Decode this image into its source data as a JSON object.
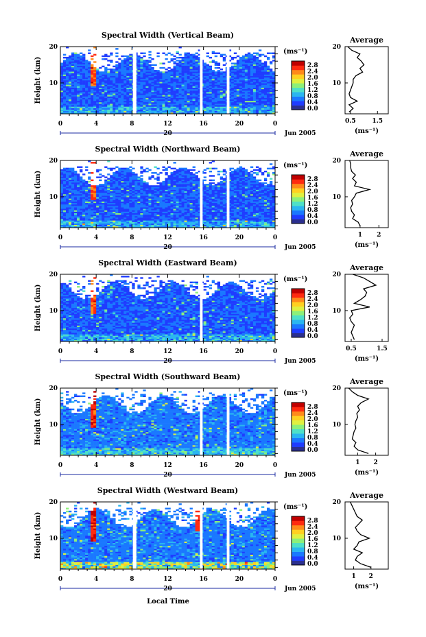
{
  "figure": {
    "xlabel": "Local Time",
    "date_label": "Jun 2005",
    "day_label": "20",
    "colorbar_unit": "(ms⁻¹)",
    "colorbar_ticks": [
      "0.0",
      "0.4",
      "0.8",
      "1.2",
      "1.6",
      "2.0",
      "2.4",
      "2.8"
    ],
    "colorbar_range": [
      0.0,
      2.8
    ],
    "colormap": [
      "#2b2f8f",
      "#1f3cff",
      "#1a78ff",
      "#2ab6f0",
      "#4ee0c8",
      "#8cf07a",
      "#e0f040",
      "#ffd020",
      "#ff8a1a",
      "#ff2a10",
      "#c00000"
    ],
    "gap_color": "#ffffff",
    "avg_title": "Average",
    "avg_xlabel": "(ms⁻¹)"
  },
  "chart_data": [
    {
      "type": "heatmap",
      "title": "Spectral Width (Vertical Beam)",
      "ylabel": "Height (km)",
      "xlim": [
        0,
        24
      ],
      "ylim": [
        1.5,
        20
      ],
      "xticks": [
        "0",
        "4",
        "8",
        "12",
        "16",
        "20",
        "0"
      ],
      "yticks": [
        "10",
        "20"
      ],
      "data_gaps_local_time": [
        [
          8.1,
          8.5
        ],
        [
          15.6,
          15.9
        ],
        [
          18.6,
          18.9
        ]
      ],
      "profile": {
        "title": "Average",
        "xlim": [
          0.3,
          1.9
        ],
        "xticks": [
          "0.5",
          "1.5"
        ],
        "heights": [
          2,
          3,
          4,
          5,
          6,
          7,
          8,
          9,
          10,
          11,
          12,
          13,
          14,
          15,
          16,
          17,
          18,
          19,
          20
        ],
        "values": [
          0.45,
          0.6,
          0.45,
          0.75,
          0.5,
          0.45,
          0.5,
          0.55,
          0.6,
          0.6,
          0.7,
          0.95,
          0.85,
          1.0,
          0.9,
          0.75,
          0.85,
          0.55,
          0.4
        ]
      }
    },
    {
      "type": "heatmap",
      "title": "Spectral Width (Northward Beam)",
      "ylabel": "Height (km)",
      "xlim": [
        0,
        24
      ],
      "ylim": [
        1.5,
        20
      ],
      "xticks": [
        "0",
        "4",
        "8",
        "12",
        "16",
        "20",
        "0"
      ],
      "yticks": [
        "10",
        "20"
      ],
      "data_gaps_local_time": [
        [
          15.6,
          15.9
        ],
        [
          18.6,
          18.9
        ]
      ],
      "profile": {
        "title": "Average",
        "xlim": [
          0.2,
          2.5
        ],
        "xticks": [
          "1",
          "2"
        ],
        "heights": [
          2,
          3,
          4,
          5,
          6,
          7,
          8,
          9,
          10,
          11,
          12,
          13,
          14,
          15,
          16,
          17,
          18,
          19,
          20
        ],
        "values": [
          1.0,
          0.9,
          0.6,
          0.7,
          0.55,
          0.5,
          0.6,
          0.55,
          0.7,
          0.8,
          1.5,
          0.7,
          0.8,
          0.6,
          0.75,
          0.55,
          0.5,
          0.5,
          0.45
        ]
      }
    },
    {
      "type": "heatmap",
      "title": "Spectral Width (Eastward Beam)",
      "ylabel": "Height (km)",
      "xlim": [
        0,
        24
      ],
      "ylim": [
        1.5,
        20
      ],
      "xticks": [
        "0",
        "4",
        "8",
        "12",
        "16",
        "20",
        "0"
      ],
      "yticks": [
        "10",
        "20"
      ],
      "data_gaps_local_time": [
        [
          15.6,
          15.9
        ]
      ],
      "profile": {
        "title": "Average",
        "xlim": [
          0.3,
          1.7
        ],
        "xticks": [
          "0.5",
          "1.5"
        ],
        "heights": [
          2,
          3,
          4,
          5,
          6,
          7,
          8,
          9,
          10,
          11,
          12,
          13,
          14,
          15,
          16,
          17,
          18,
          19,
          20
        ],
        "values": [
          0.6,
          0.55,
          0.5,
          0.55,
          0.6,
          0.5,
          0.45,
          0.55,
          0.5,
          1.1,
          0.6,
          0.8,
          0.95,
          1.0,
          0.9,
          1.3,
          1.1,
          0.9,
          0.55
        ]
      }
    },
    {
      "type": "heatmap",
      "title": "Spectral Width (Southward Beam)",
      "ylabel": "Height (km)",
      "xlim": [
        0,
        24
      ],
      "ylim": [
        1.5,
        20
      ],
      "xticks": [
        "0",
        "4",
        "8",
        "12",
        "16",
        "20",
        "0"
      ],
      "yticks": [
        "10",
        "20"
      ],
      "data_gaps_local_time": [
        [
          15.6,
          15.9
        ],
        [
          18.6,
          18.9
        ]
      ],
      "profile": {
        "title": "Average",
        "xlim": [
          0.3,
          2.7
        ],
        "xticks": [
          "1",
          "2"
        ],
        "heights": [
          2,
          3,
          4,
          5,
          6,
          7,
          8,
          9,
          10,
          11,
          12,
          13,
          14,
          15,
          16,
          17,
          18,
          19,
          20
        ],
        "values": [
          1.6,
          1.0,
          0.8,
          0.9,
          0.7,
          0.75,
          0.8,
          0.9,
          0.85,
          0.9,
          1.0,
          0.95,
          1.1,
          1.0,
          1.2,
          1.6,
          1.0,
          0.7,
          0.5
        ]
      }
    },
    {
      "type": "heatmap",
      "title": "Spectral Width (Westward Beam)",
      "ylabel": "Height (km)",
      "xlim": [
        0,
        24
      ],
      "ylim": [
        1.5,
        20
      ],
      "xticks": [
        "0",
        "4",
        "8",
        "12",
        "16",
        "20",
        "0"
      ],
      "yticks": [
        "10",
        "20"
      ],
      "data_gaps_local_time": [
        [
          8.1,
          8.5
        ],
        [
          15.6,
          15.9
        ],
        [
          18.6,
          18.9
        ]
      ],
      "profile": {
        "title": "Average",
        "xlim": [
          0.5,
          3.0
        ],
        "xticks": [
          "1",
          "2"
        ],
        "heights": [
          2,
          3,
          4,
          5,
          6,
          7,
          8,
          9,
          10,
          11,
          12,
          13,
          14,
          15,
          16,
          17,
          18,
          19,
          20
        ],
        "values": [
          2.0,
          1.4,
          1.1,
          1.2,
          1.5,
          1.0,
          1.2,
          1.3,
          1.9,
          1.4,
          1.2,
          1.1,
          1.3,
          1.5,
          1.2,
          1.1,
          1.0,
          0.9,
          0.8
        ]
      }
    }
  ]
}
